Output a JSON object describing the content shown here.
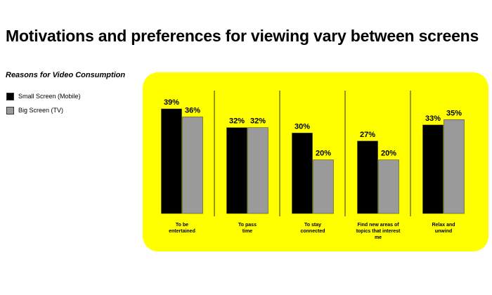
{
  "page": {
    "title": "Motivations and preferences for viewing vary between screens",
    "subtitle": "Reasons for Video Consumption"
  },
  "legend": [
    {
      "label": "Small Screen (Mobile)",
      "color": "#000000"
    },
    {
      "label": "Big Screen (TV)",
      "color": "#9a9a9a"
    }
  ],
  "colors": {
    "panel": "#ffff00",
    "divider": "#333333"
  },
  "chart_data": {
    "type": "bar",
    "categories": [
      [
        "To be",
        "entertained"
      ],
      [
        "To pass",
        "time"
      ],
      [
        "To stay",
        "connected"
      ],
      [
        "Find new areas of",
        "topics that interest",
        "me"
      ],
      [
        "Relax and",
        "unwind"
      ]
    ],
    "series": [
      {
        "name": "Small Screen (Mobile)",
        "values": [
          39,
          32,
          30,
          27,
          33
        ],
        "labels": [
          "39%",
          "32%",
          "30%",
          "27%",
          "33%"
        ],
        "color": "#000000"
      },
      {
        "name": "Big Screen (TV)",
        "values": [
          36,
          32,
          20,
          20,
          35
        ],
        "labels": [
          "36%",
          "32%",
          "20%",
          "20%",
          "35%"
        ],
        "color": "#9a9a9a"
      }
    ],
    "title": "Reasons for Video Consumption",
    "xlabel": "",
    "ylabel": "",
    "ylim": [
      0,
      39
    ],
    "grid": false,
    "legend_position": "top-left"
  }
}
